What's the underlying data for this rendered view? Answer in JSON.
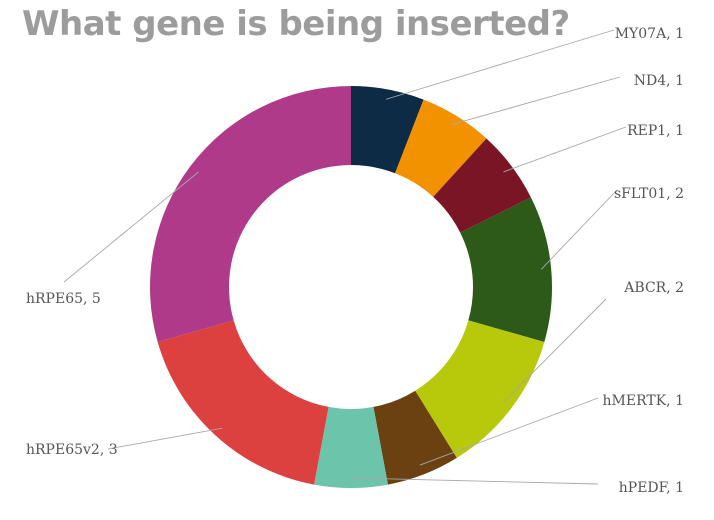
{
  "chart_data": {
    "type": "pie",
    "variant": "donut",
    "title": "What gene is being inserted?",
    "slices": [
      {
        "label": "MY07A",
        "value": 1,
        "display": "MY07A, 1",
        "color": "#0d2b45"
      },
      {
        "label": "ND4",
        "value": 1,
        "display": "ND4, 1",
        "color": "#f29200"
      },
      {
        "label": "REP1",
        "value": 1,
        "display": "REP1, 1",
        "color": "#7a1525"
      },
      {
        "label": "sFLT01",
        "value": 2,
        "display": "sFLT01, 2",
        "color": "#2e5a19"
      },
      {
        "label": "ABCR",
        "value": 2,
        "display": "ABCR, 2",
        "color": "#b8c80a"
      },
      {
        "label": "hMERTK",
        "value": 1,
        "display": "hMERTK, 1",
        "color": "#6b4111"
      },
      {
        "label": "hPEDF",
        "value": 1,
        "display": "hPEDF, 1",
        "color": "#6cc4aa"
      },
      {
        "label": "hRPE65v2",
        "value": 3,
        "display": "hRPE65v2, 3",
        "color": "#dc4140"
      },
      {
        "label": "hRPE65",
        "value": 5,
        "display": "hRPE65, 5",
        "color": "#b03a8a"
      }
    ]
  }
}
